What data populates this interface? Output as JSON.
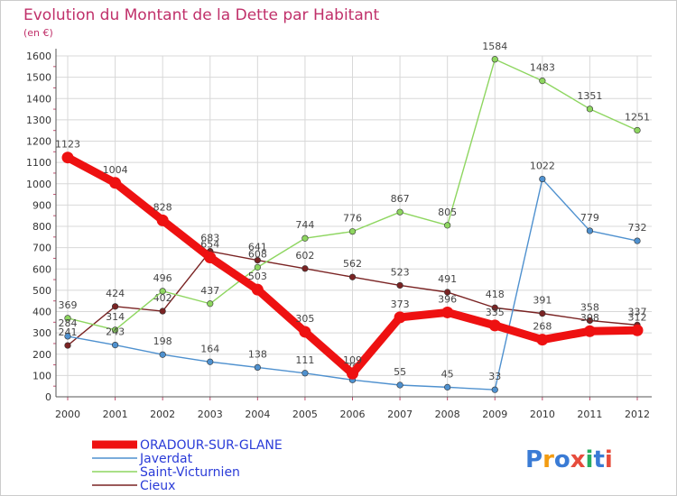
{
  "chart_data": {
    "type": "line",
    "title": "Evolution du Montant de la Dette par Habitant",
    "subtitle": "(en €)",
    "x": [
      "2000",
      "2001",
      "2002",
      "2003",
      "2004",
      "2005",
      "2006",
      "2007",
      "2008",
      "2009",
      "2010",
      "2011",
      "2012"
    ],
    "ylim": [
      0,
      1600
    ],
    "yticks": [
      0,
      100,
      200,
      300,
      400,
      500,
      600,
      700,
      800,
      900,
      1000,
      1100,
      1200,
      1300,
      1400,
      1500,
      1600
    ],
    "grid": true,
    "legend_position": "bottom-left",
    "series": [
      {
        "name": "ORADOUR-SUR-GLANE",
        "color": "#ee1111",
        "values": [
          1123,
          1004,
          828,
          654,
          503,
          305,
          109,
          373,
          396,
          335,
          268,
          308,
          312
        ]
      },
      {
        "name": "Javerdat",
        "color": "#4f91cf",
        "values": [
          284,
          243,
          198,
          164,
          138,
          111,
          79,
          55,
          45,
          33,
          1022,
          779,
          732
        ]
      },
      {
        "name": "Saint-Victurnien",
        "color": "#8ed660",
        "values": [
          369,
          314,
          496,
          437,
          608,
          744,
          776,
          867,
          805,
          1584,
          1483,
          1351,
          1251
        ]
      },
      {
        "name": "Cieux",
        "color": "#7a2323",
        "values": [
          241,
          424,
          402,
          683,
          641,
          602,
          562,
          523,
          491,
          418,
          391,
          358,
          337
        ]
      }
    ]
  },
  "logo": {
    "text": "Proxiti",
    "colors": [
      "#3a7bd5",
      "#f39c12",
      "#3a7bd5",
      "#e74c3c",
      "#27ae60",
      "#3a7bd5",
      "#e74c3c"
    ]
  }
}
